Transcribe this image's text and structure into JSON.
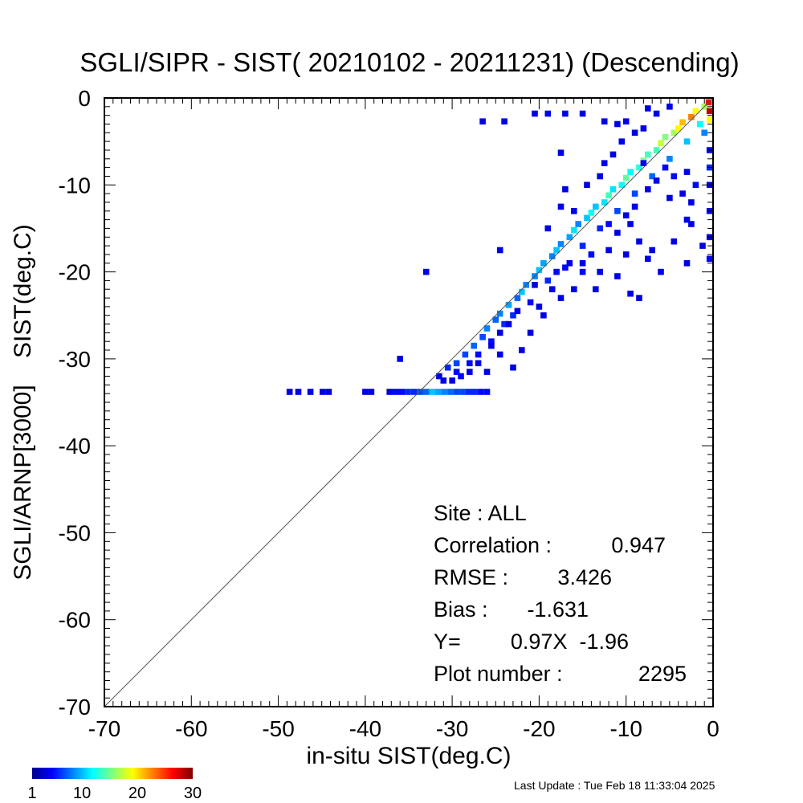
{
  "chart_data": {
    "type": "heatmap",
    "title": "SGLI/SIPR - SIST( 20210102 - 20211231) (Descending)",
    "xlabel": "in-situ SIST(deg.C)",
    "ylabel": "SGLI/ARNP[3000]    SIST(deg.C)",
    "xlim": [
      -70,
      0
    ],
    "ylim": [
      -70,
      0
    ],
    "x_ticks": [
      -70,
      -60,
      -50,
      -40,
      -30,
      -20,
      -10,
      0
    ],
    "y_ticks": [
      -70,
      -60,
      -50,
      -40,
      -30,
      -20,
      -10,
      0
    ],
    "x_tick_labels": [
      "-70",
      "-60",
      "-50",
      "-40",
      "-30",
      "-20",
      "-10",
      "0"
    ],
    "y_tick_labels": [
      "-70",
      "-60",
      "-50",
      "-40",
      "-30",
      "-20",
      "-10",
      "0"
    ],
    "reference_line": "1:1",
    "grid": false,
    "bin_size_deg": 0.7,
    "colorbar": {
      "min": 1,
      "max": 30,
      "tick_values": [
        1,
        10,
        20,
        30
      ],
      "tick_labels": [
        "1",
        "10",
        "20",
        "30"
      ],
      "colormap": "jet"
    },
    "bins": [
      [
        -48.7,
        -33.8,
        1
      ],
      [
        -47.7,
        -33.8,
        1
      ],
      [
        -46.3,
        -33.8,
        1
      ],
      [
        -44.9,
        -33.8,
        1
      ],
      [
        -44.2,
        -33.8,
        1
      ],
      [
        -40.0,
        -33.8,
        1
      ],
      [
        -39.3,
        -33.8,
        1
      ],
      [
        -37.2,
        -33.8,
        1
      ],
      [
        -36.5,
        -33.8,
        2
      ],
      [
        -35.8,
        -33.8,
        2
      ],
      [
        -35.1,
        -33.8,
        3
      ],
      [
        -34.4,
        -33.8,
        3
      ],
      [
        -33.7,
        -33.8,
        4
      ],
      [
        -33.0,
        -33.8,
        5
      ],
      [
        -32.3,
        -33.8,
        8
      ],
      [
        -31.6,
        -33.8,
        7
      ],
      [
        -30.9,
        -33.8,
        6
      ],
      [
        -30.2,
        -33.8,
        5
      ],
      [
        -29.5,
        -33.8,
        4
      ],
      [
        -28.8,
        -33.8,
        4
      ],
      [
        -28.1,
        -33.8,
        3
      ],
      [
        -27.4,
        -33.8,
        3
      ],
      [
        -26.7,
        -33.8,
        2
      ],
      [
        -26.0,
        -33.8,
        2
      ],
      [
        -36.0,
        -30.0,
        1
      ],
      [
        -31.5,
        -32.0,
        1
      ],
      [
        -30.5,
        -31.0,
        3
      ],
      [
        -29.5,
        -31.5,
        2
      ],
      [
        -29.5,
        -30.5,
        4
      ],
      [
        -28.5,
        -29.5,
        4
      ],
      [
        -28.0,
        -30.5,
        2
      ],
      [
        -27.5,
        -28.5,
        5
      ],
      [
        -27.0,
        -29.5,
        2
      ],
      [
        -26.5,
        -27.5,
        4
      ],
      [
        -26.0,
        -26.5,
        6
      ],
      [
        -25.5,
        -28.0,
        2
      ],
      [
        -25.0,
        -25.5,
        5
      ],
      [
        -24.5,
        -24.8,
        6
      ],
      [
        -24.0,
        -26.0,
        3
      ],
      [
        -23.5,
        -23.8,
        7
      ],
      [
        -23.0,
        -25.0,
        3
      ],
      [
        -22.5,
        -23.0,
        5
      ],
      [
        -22.0,
        -22.3,
        8
      ],
      [
        -21.5,
        -21.5,
        6
      ],
      [
        -21.0,
        -23.5,
        2
      ],
      [
        -20.5,
        -20.5,
        6
      ],
      [
        -20.0,
        -19.8,
        8
      ],
      [
        -19.5,
        -19.0,
        7
      ],
      [
        -19.0,
        -21.0,
        3
      ],
      [
        -18.5,
        -18.2,
        6
      ],
      [
        -18.0,
        -17.5,
        8
      ],
      [
        -17.5,
        -16.8,
        6
      ],
      [
        -17.0,
        -19.5,
        2
      ],
      [
        -16.5,
        -16.0,
        7
      ],
      [
        -16.0,
        -15.2,
        9
      ],
      [
        -15.5,
        -14.5,
        6
      ],
      [
        -15.0,
        -17.0,
        3
      ],
      [
        -14.5,
        -13.8,
        8
      ],
      [
        -14.0,
        -13.2,
        10
      ],
      [
        -13.5,
        -12.5,
        8
      ],
      [
        -13.0,
        -15.0,
        3
      ],
      [
        -12.5,
        -12.0,
        9
      ],
      [
        -12.0,
        -11.2,
        12
      ],
      [
        -11.5,
        -10.5,
        9
      ],
      [
        -11.0,
        -13.0,
        4
      ],
      [
        -10.5,
        -10.0,
        10
      ],
      [
        -10.0,
        -9.2,
        13
      ],
      [
        -9.5,
        -8.5,
        10
      ],
      [
        -9.0,
        -11.0,
        4
      ],
      [
        -8.5,
        -8.0,
        11
      ],
      [
        -8.0,
        -7.2,
        14
      ],
      [
        -7.5,
        -6.5,
        12
      ],
      [
        -7.0,
        -9.0,
        5
      ],
      [
        -6.5,
        -6.0,
        12
      ],
      [
        -6.0,
        -5.2,
        16
      ],
      [
        -5.5,
        -4.5,
        14
      ],
      [
        -5.0,
        -7.0,
        6
      ],
      [
        -4.5,
        -4.0,
        15
      ],
      [
        -4.0,
        -3.5,
        18
      ],
      [
        -3.5,
        -2.8,
        20
      ],
      [
        -3.0,
        -5.0,
        8
      ],
      [
        -2.5,
        -2.2,
        22
      ],
      [
        -2.0,
        -1.5,
        18
      ],
      [
        -1.5,
        -3.0,
        10
      ],
      [
        -1.0,
        -1.0,
        15
      ],
      [
        -0.5,
        -0.5,
        26
      ],
      [
        -0.4,
        -1.5,
        28
      ],
      [
        -0.4,
        -2.5,
        18
      ],
      [
        -1.0,
        -4.0,
        6
      ],
      [
        -0.4,
        -6.0,
        2
      ],
      [
        -0.4,
        -8.0,
        3
      ],
      [
        -0.4,
        -10.0,
        1
      ],
      [
        -0.4,
        -13.0,
        2
      ],
      [
        -0.4,
        -16.0,
        1
      ],
      [
        -0.4,
        -18.5,
        2
      ],
      [
        -1.2,
        -17.0,
        1
      ],
      [
        -2.0,
        -10.0,
        2
      ],
      [
        -3.5,
        -11.0,
        1
      ],
      [
        -2.5,
        -14.5,
        1
      ],
      [
        -5.0,
        -11.5,
        1
      ],
      [
        -3.0,
        -19.0,
        1
      ],
      [
        -7.0,
        -17.5,
        1
      ],
      [
        -6.0,
        -20.0,
        1
      ],
      [
        -8.5,
        -23.0,
        1
      ],
      [
        -9.5,
        -22.5,
        1
      ],
      [
        -10.0,
        -18.0,
        1
      ],
      [
        -11.0,
        -20.5,
        1
      ],
      [
        -13.0,
        -20.0,
        1
      ],
      [
        -14.0,
        -18.0,
        2
      ],
      [
        -16.0,
        -22.0,
        1
      ],
      [
        -17.5,
        -23.0,
        1
      ],
      [
        -18.5,
        -22.0,
        1
      ],
      [
        -19.5,
        -25.0,
        1
      ],
      [
        -21.0,
        -27.0,
        1
      ],
      [
        -22.0,
        -29.0,
        1
      ],
      [
        -23.0,
        -31.0,
        1
      ],
      [
        -24.5,
        -29.5,
        1
      ],
      [
        -26.0,
        -31.5,
        1
      ],
      [
        -31.0,
        -32.5,
        1
      ],
      [
        -12.0,
        -14.5,
        2
      ],
      [
        -9.5,
        -14.5,
        1
      ],
      [
        -8.5,
        -16.5,
        1
      ],
      [
        -7.5,
        -18.5,
        1
      ],
      [
        -4.5,
        -16.5,
        1
      ],
      [
        -15.0,
        -20.0,
        2
      ],
      [
        -13.5,
        -22.0,
        1
      ],
      [
        -20.0,
        -24.0,
        1
      ],
      [
        -14.5,
        -10.0,
        1
      ],
      [
        -13.0,
        -9.0,
        1
      ],
      [
        -16.0,
        -13.0,
        1
      ],
      [
        -17.5,
        -12.5,
        1
      ],
      [
        -12.5,
        -7.5,
        1
      ],
      [
        -11.5,
        -6.5,
        1
      ],
      [
        -10.5,
        -5.0,
        1
      ],
      [
        -9.0,
        -4.0,
        1
      ],
      [
        -8.0,
        -3.5,
        1
      ],
      [
        -6.5,
        -1.8,
        1
      ],
      [
        -5.0,
        -1.0,
        1
      ],
      [
        -7.5,
        -1.2,
        1
      ],
      [
        -11.0,
        -3.0,
        1
      ],
      [
        -15.0,
        -1.8,
        1
      ],
      [
        -17.0,
        -1.8,
        1
      ],
      [
        -19.0,
        -1.8,
        1
      ],
      [
        -20.5,
        -1.8,
        1
      ],
      [
        -24.0,
        -2.7,
        1
      ],
      [
        -26.5,
        -2.7,
        1
      ],
      [
        -33.0,
        -20.0,
        1
      ],
      [
        -24.5,
        -17.5,
        1
      ],
      [
        -19.0,
        -15.0,
        1
      ],
      [
        -17.0,
        -10.5,
        1
      ],
      [
        -17.5,
        -6.3,
        1
      ],
      [
        -10.0,
        -2.7,
        1
      ],
      [
        -12.5,
        -2.7,
        1
      ],
      [
        -8.0,
        -7.5,
        1
      ],
      [
        -3.0,
        -8.5,
        1
      ],
      [
        -2.5,
        -12.0,
        1
      ],
      [
        -3.0,
        -14.0,
        1
      ],
      [
        -4.5,
        -9.0,
        2
      ],
      [
        -5.5,
        -8.0,
        2
      ],
      [
        -6.5,
        -9.5,
        1
      ],
      [
        -7.5,
        -10.5,
        1
      ],
      [
        -9.0,
        -12.5,
        1
      ],
      [
        -10.0,
        -13.5,
        1
      ],
      [
        -11.0,
        -15.5,
        1
      ],
      [
        -12.0,
        -17.5,
        1
      ],
      [
        -15.0,
        -19.0,
        1
      ],
      [
        -16.5,
        -19.0,
        1
      ],
      [
        -18.0,
        -20.0,
        2
      ],
      [
        -20.5,
        -21.5,
        1
      ],
      [
        -22.5,
        -24.5,
        1
      ],
      [
        -23.5,
        -26.0,
        1
      ],
      [
        -24.5,
        -27.0,
        1
      ],
      [
        -25.5,
        -28.5,
        1
      ],
      [
        -27.0,
        -30.5,
        1
      ],
      [
        -28.0,
        -31.5,
        1
      ],
      [
        -29.0,
        -32.0,
        2
      ],
      [
        -30.0,
        -32.5,
        1
      ]
    ]
  },
  "stats": {
    "site": "Site : ALL",
    "correlation_label": "Correlation :",
    "correlation_value": "0.947",
    "rmse_label": "RMSE :",
    "rmse_value": "3.426",
    "bias_label": "Bias :",
    "bias_value": "-1.631",
    "fit_label": "Y=",
    "fit_value": "0.97X  -1.96",
    "plot_number_label": "Plot number :",
    "plot_number_value": "2295"
  },
  "footer": {
    "last_update": "Last Update : Tue Feb 18 11:33:04 2025"
  }
}
